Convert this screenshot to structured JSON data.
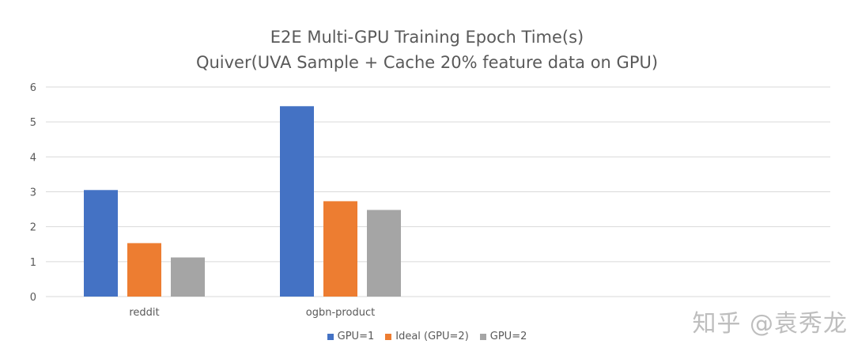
{
  "chart_data": {
    "type": "bar",
    "title": "E2E Multi-GPU Training Epoch Time(s)",
    "subtitle": "Quiver(UVA Sample + Cache 20% feature data on GPU)",
    "categories": [
      "reddit",
      "ogbn-product"
    ],
    "series": [
      {
        "name": "GPU=1",
        "values": [
          3.05,
          5.45
        ],
        "color": "#4472C4"
      },
      {
        "name": "Ideal (GPU=2)",
        "values": [
          1.53,
          2.73
        ],
        "color": "#ED7D31"
      },
      {
        "name": "GPU=2",
        "values": [
          1.12,
          2.48
        ],
        "color": "#A5A5A5"
      }
    ],
    "ylim": [
      0,
      6
    ],
    "yticks": [
      0,
      1,
      2,
      3,
      4,
      5,
      6
    ],
    "grid": true,
    "legend_position": "bottom"
  },
  "watermark": "知乎 @袁秀龙"
}
